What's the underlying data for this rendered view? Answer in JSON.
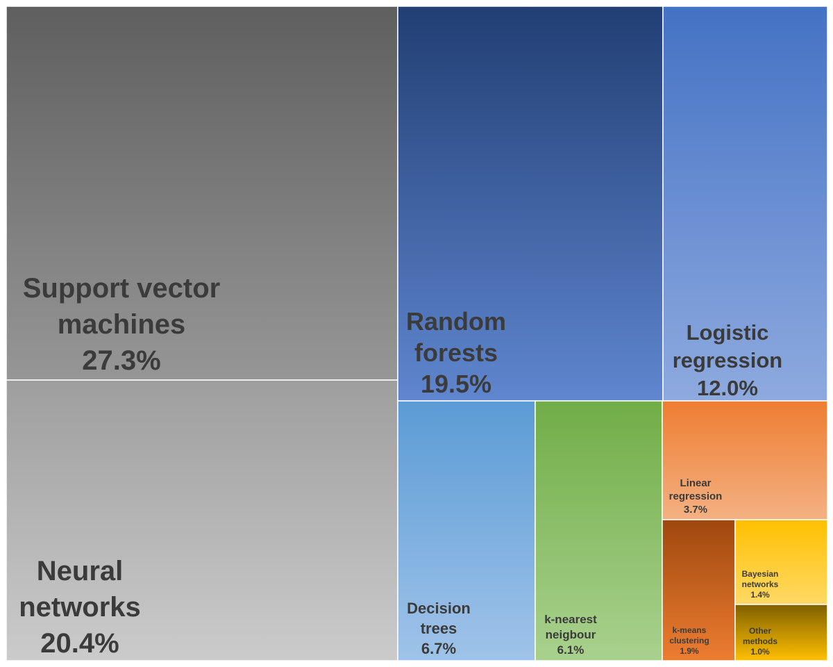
{
  "chart_data": {
    "type": "treemap",
    "unit": "%",
    "items": [
      {
        "label_lines": [
          "Support vector",
          "machines"
        ],
        "value": 27.3,
        "display": "27.3%",
        "colors": [
          "#5f5f5f",
          "#969696"
        ]
      },
      {
        "label_lines": [
          "Neural",
          "networks"
        ],
        "value": 20.4,
        "display": "20.4%",
        "colors": [
          "#9e9e9e",
          "#cbcbcb"
        ]
      },
      {
        "label_lines": [
          "Random",
          "forests"
        ],
        "value": 19.5,
        "display": "19.5%",
        "colors": [
          "#223f74",
          "#5f86cf"
        ]
      },
      {
        "label_lines": [
          "Logistic",
          "regression"
        ],
        "value": 12.0,
        "display": "12.0%",
        "colors": [
          "#4472c4",
          "#8eaadf"
        ]
      },
      {
        "label_lines": [
          "Decision",
          "trees"
        ],
        "value": 6.7,
        "display": "6.7%",
        "colors": [
          "#5b9bd5",
          "#9fc3e9"
        ]
      },
      {
        "label_lines": [
          "k-nearest",
          "neigbour"
        ],
        "value": 6.1,
        "display": "6.1%",
        "colors": [
          "#70ad47",
          "#a9d18e"
        ]
      },
      {
        "label_lines": [
          "Linear",
          "regression"
        ],
        "value": 3.7,
        "display": "3.7%",
        "colors": [
          "#ed7d31",
          "#f4b183"
        ]
      },
      {
        "label_lines": [
          "k-means",
          "clustering"
        ],
        "value": 1.9,
        "display": "1.9%",
        "colors": [
          "#9e480e",
          "#ed7d31"
        ]
      },
      {
        "label_lines": [
          "Bayesian",
          "networks"
        ],
        "value": 1.4,
        "display": "1.4%",
        "colors": [
          "#ffc000",
          "#ffd966"
        ]
      },
      {
        "label_lines": [
          "Other",
          "methods"
        ],
        "value": 1.0,
        "display": "1.0%",
        "colors": [
          "#7f6000",
          "#ffc000"
        ]
      }
    ]
  }
}
